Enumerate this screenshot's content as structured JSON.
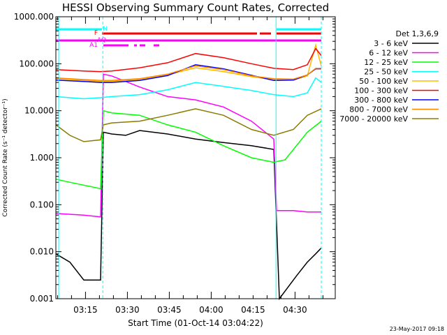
{
  "chart_data": {
    "type": "line",
    "title": "HESSI Observing Summary Count Rates, Corrected",
    "xlabel": "Start Time (01-Oct-14 03:04:22)",
    "ylabel": "Corrected Count Rate (s⁻¹ detector⁻¹)",
    "yscale": "log",
    "ylim": [
      0.001,
      1000
    ],
    "xlim_minutes": [
      0,
      100
    ],
    "yticks": [
      "1000.000",
      "100.000",
      "10.000",
      "1.000",
      "0.100",
      "0.010",
      "0.001"
    ],
    "xticks": [
      "03:15",
      "03:30",
      "03:45",
      "04:00",
      "04:15",
      "04:30"
    ],
    "legend_title": "Det 1,3,6,9",
    "footer": "23-May-2017 09:18",
    "flags": [
      "N",
      "F",
      "AQ",
      "A1"
    ],
    "series": [
      {
        "name": "3 - 6 keV",
        "color": "#000000",
        "x": [
          0,
          5,
          10,
          16,
          17,
          20,
          25,
          30,
          40,
          50,
          60,
          70,
          78,
          80,
          86,
          90,
          93,
          95
        ],
        "y": [
          0.009,
          0.006,
          0.0025,
          0.0025,
          3.5,
          3.2,
          3.0,
          3.8,
          3.2,
          2.5,
          2.1,
          1.8,
          1.5,
          0.001,
          0.003,
          0.006,
          0.009,
          0.012
        ]
      },
      {
        "name": "6 - 12 keV",
        "color": "#ff00ff",
        "x": [
          0,
          10,
          16,
          17,
          20,
          30,
          40,
          50,
          60,
          70,
          78,
          79,
          85,
          90,
          95
        ],
        "y": [
          0.065,
          0.06,
          0.055,
          60,
          55,
          32,
          20,
          17,
          12,
          6,
          2.5,
          0.075,
          0.075,
          0.07,
          0.07
        ]
      },
      {
        "name": "12 - 25 keV",
        "color": "#00ff00",
        "x": [
          0,
          5,
          16,
          17,
          20,
          30,
          40,
          50,
          60,
          70,
          78,
          82,
          90,
          95
        ],
        "y": [
          0.35,
          0.3,
          0.22,
          10,
          9,
          8,
          5,
          3.5,
          1.8,
          1.0,
          0.8,
          0.9,
          3.5,
          6
        ]
      },
      {
        "name": "25 - 50 keV",
        "color": "#00ffff",
        "x": [
          0,
          10,
          16,
          20,
          30,
          40,
          50,
          60,
          70,
          78,
          85,
          90,
          93,
          95
        ],
        "y": [
          20,
          18,
          19,
          20,
          22,
          28,
          40,
          33,
          27,
          22,
          20,
          24,
          50,
          40
        ]
      },
      {
        "name": "50 - 100 keV",
        "color": "#ffbb00",
        "x": [
          0,
          10,
          16,
          20,
          30,
          40,
          50,
          60,
          70,
          78,
          85,
          90,
          93,
          95
        ],
        "y": [
          48,
          44,
          42,
          42,
          46,
          58,
          82,
          68,
          53,
          46,
          45,
          55,
          250,
          90
        ]
      },
      {
        "name": "100 - 300 keV",
        "color": "#ff0000",
        "x": [
          0,
          10,
          16,
          20,
          30,
          40,
          50,
          60,
          70,
          78,
          85,
          90,
          93,
          95
        ],
        "y": [
          75,
          70,
          68,
          70,
          82,
          105,
          165,
          135,
          100,
          80,
          75,
          95,
          210,
          150
        ]
      },
      {
        "name": "300 - 800 keV",
        "color": "#0000ff",
        "x": [
          0,
          10,
          16,
          20,
          30,
          40,
          50,
          60,
          70,
          78,
          85,
          90,
          93,
          95
        ],
        "y": [
          45,
          42,
          40,
          40,
          44,
          56,
          95,
          78,
          57,
          44,
          45,
          58,
          78,
          78
        ]
      },
      {
        "name": "800 - 7000 keV",
        "color": "#ff8800",
        "x": [
          0,
          10,
          16,
          20,
          30,
          40,
          50,
          60,
          70,
          78,
          85,
          90,
          93,
          95
        ],
        "y": [
          50,
          46,
          44,
          44,
          48,
          60,
          90,
          75,
          55,
          48,
          47,
          58,
          80,
          80
        ]
      },
      {
        "name": "7000 - 20000 keV",
        "color": "#8b7a00",
        "x": [
          0,
          5,
          10,
          16,
          17,
          20,
          30,
          40,
          50,
          60,
          70,
          78,
          85,
          90,
          95
        ],
        "y": [
          5,
          3,
          2.2,
          2.4,
          5,
          5.5,
          6,
          8,
          11,
          8,
          4,
          3,
          4,
          8,
          11
        ]
      }
    ]
  }
}
